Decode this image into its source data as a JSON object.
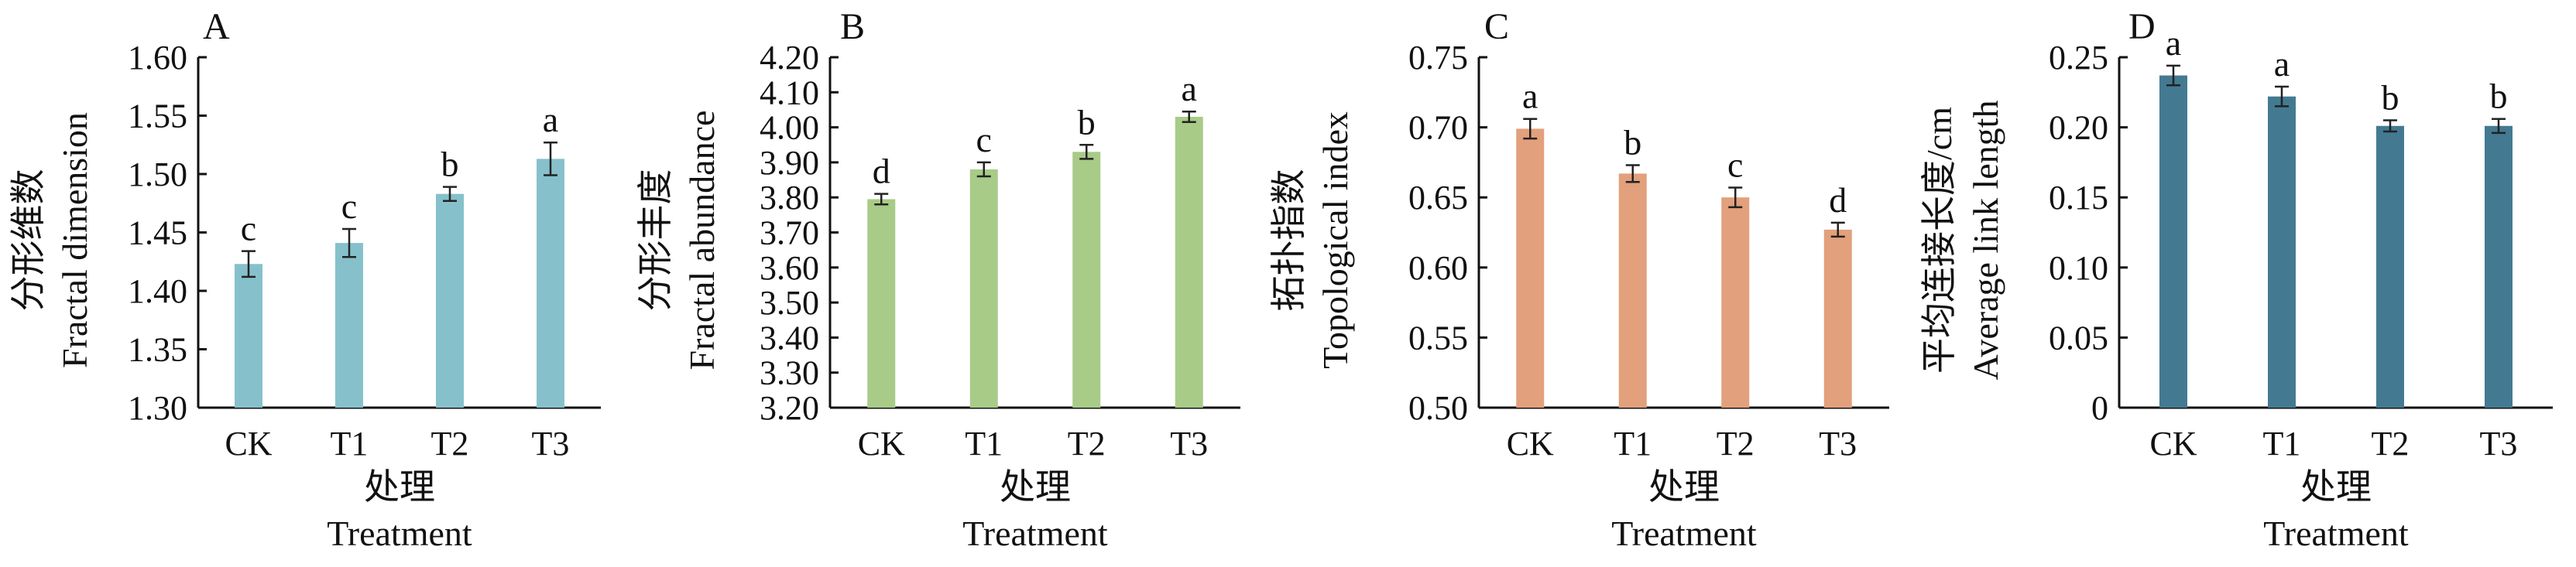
{
  "chart_data": [
    {
      "type": "bar",
      "panel": "A",
      "categories": [
        "CK",
        "T1",
        "T2",
        "T3"
      ],
      "values": [
        1.423,
        1.441,
        1.483,
        1.513
      ],
      "errors": [
        0.011,
        0.012,
        0.006,
        0.014
      ],
      "significance": [
        "c",
        "c",
        "b",
        "a"
      ],
      "ylabel_cn": "分形维数",
      "ylabel_en": "Fractal dimension",
      "xlabel_cn": "处理",
      "xlabel_en": "Treatment",
      "ylim": [
        1.3,
        1.6
      ],
      "yticks": [
        "1.30",
        "1.35",
        "1.40",
        "1.45",
        "1.50",
        "1.55",
        "1.60"
      ],
      "color": "#86c1cb"
    },
    {
      "type": "bar",
      "panel": "B",
      "categories": [
        "CK",
        "T1",
        "T2",
        "T3"
      ],
      "values": [
        3.795,
        3.88,
        3.93,
        4.03
      ],
      "errors": [
        0.015,
        0.02,
        0.02,
        0.015
      ],
      "significance": [
        "d",
        "c",
        "b",
        "a"
      ],
      "ylabel_cn": "分形丰度",
      "ylabel_en": "Fractal abundance",
      "xlabel_cn": "处理",
      "xlabel_en": "Treatment",
      "ylim": [
        3.2,
        4.2
      ],
      "yticks": [
        "3.20",
        "3.30",
        "3.40",
        "3.50",
        "3.60",
        "3.70",
        "3.80",
        "3.90",
        "4.00",
        "4.10",
        "4.20"
      ],
      "color": "#a8cb88"
    },
    {
      "type": "bar",
      "panel": "C",
      "categories": [
        "CK",
        "T1",
        "T2",
        "T3"
      ],
      "values": [
        0.699,
        0.667,
        0.65,
        0.627
      ],
      "errors": [
        0.007,
        0.006,
        0.007,
        0.005
      ],
      "significance": [
        "a",
        "b",
        "c",
        "d"
      ],
      "ylabel_cn": "拓扑指数",
      "ylabel_en": "Topological index",
      "xlabel_cn": "处理",
      "xlabel_en": "Treatment",
      "ylim": [
        0.5,
        0.75
      ],
      "yticks": [
        "0.50",
        "0.55",
        "0.60",
        "0.65",
        "0.70",
        "0.75"
      ],
      "color": "#e2a07c"
    },
    {
      "type": "bar",
      "panel": "D",
      "categories": [
        "CK",
        "T1",
        "T2",
        "T3"
      ],
      "values": [
        0.237,
        0.222,
        0.201,
        0.201
      ],
      "errors": [
        0.007,
        0.007,
        0.004,
        0.005
      ],
      "significance": [
        "a",
        "a",
        "b",
        "b"
      ],
      "ylabel_cn": "平均连接长度/cm",
      "ylabel_en": "Average link length",
      "xlabel_cn": "处理",
      "xlabel_en": "Treatment",
      "ylim": [
        0,
        0.25
      ],
      "yticks": [
        "0",
        "0.05",
        "0.10",
        "0.15",
        "0.20",
        "0.25"
      ],
      "color": "#437a92"
    }
  ]
}
